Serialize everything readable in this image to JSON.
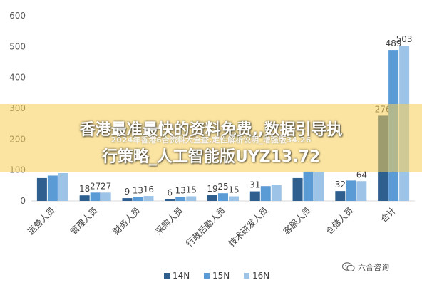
{
  "chart_data": {
    "type": "bar",
    "categories": [
      "运营人员",
      "管理人员",
      "财务人员",
      "采购人员",
      "行政后勤人员",
      "技术研发人员",
      "客服人员",
      "仓储人员",
      "合计"
    ],
    "series": [
      {
        "name": "14N",
        "values": [
          74,
          18,
          9,
          6,
          19,
          31,
          74,
          32,
          276
        ],
        "labels": [
          "",
          "18",
          "9",
          "6",
          "19",
          "31",
          "",
          "32",
          "276"
        ]
      },
      {
        "name": "15N",
        "values": [
          82,
          27,
          13,
          13,
          25,
          48,
          95,
          66,
          489
        ],
        "labels": [
          "",
          "27",
          "13",
          "13",
          "25",
          "",
          "",
          "",
          "489"
        ]
      },
      {
        "name": "16N",
        "values": [
          90,
          27,
          16,
          15,
          15,
          51,
          94,
          64,
          503
        ],
        "labels": [
          "",
          "27",
          "16",
          "15",
          "15",
          "",
          "",
          "64",
          "503"
        ]
      }
    ],
    "colors": [
      "#2E5F8E",
      "#5B9BD5",
      "#9DC3E6"
    ],
    "ylim": [
      0,
      600
    ],
    "yticks": [
      0,
      100,
      200,
      300,
      400,
      500,
      600
    ],
    "grid": false,
    "legend": "bottom"
  },
  "overlay": {
    "title_line1": "香港最准最快的资料免费,,数据引导执",
    "subtitle": "2024年香港6合资料大全查,定性解析说明_增强版34.26",
    "title_line2": "行策略_人工智能版UYZ13.72"
  },
  "watermark": {
    "text": "六合咨询",
    "icon": "wechat-icon"
  }
}
